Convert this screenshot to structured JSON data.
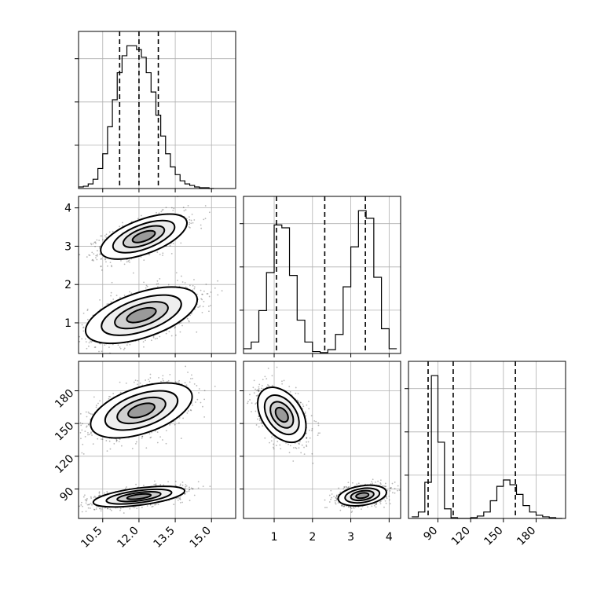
{
  "chart_data": {
    "type": "corner",
    "grid": true,
    "parameters": [
      {
        "range": [
          9.5,
          16.0
        ],
        "ticks": [
          10.5,
          12.0,
          13.5,
          15.0
        ],
        "tick_labels": [
          "10.5",
          "12.0",
          "13.5",
          "15.0"
        ],
        "quantiles": [
          11.2,
          12.0,
          12.8
        ]
      },
      {
        "range": [
          0.2,
          4.3
        ],
        "ticks": [
          1,
          2,
          3,
          4
        ],
        "tick_labels": [
          "1",
          "2",
          "3",
          "4"
        ],
        "quantiles": [
          1.06,
          2.32,
          3.38
        ]
      },
      {
        "range": [
          63,
          207
        ],
        "ticks": [
          90,
          120,
          150,
          180
        ],
        "tick_labels": [
          "90",
          "120",
          "150",
          "180"
        ],
        "quantiles": [
          81,
          104,
          161
        ]
      }
    ],
    "histograms": [
      {
        "bin_centers": [
          9.6,
          9.8,
          10.0,
          10.2,
          10.4,
          10.6,
          10.8,
          11.0,
          11.2,
          11.4,
          11.6,
          11.8,
          12.0,
          12.2,
          12.4,
          12.6,
          12.8,
          13.0,
          13.2,
          13.4,
          13.6,
          13.8,
          14.0,
          14.2,
          14.4,
          14.6,
          14.8,
          15.0
        ],
        "counts": [
          2,
          3,
          6,
          12,
          26,
          45,
          80,
          115,
          150,
          172,
          185,
          185,
          180,
          170,
          150,
          125,
          95,
          68,
          45,
          28,
          18,
          10,
          6,
          4,
          2,
          1,
          1,
          0
        ]
      },
      {
        "bin_centers": [
          0.3,
          0.5,
          0.7,
          0.9,
          1.1,
          1.3,
          1.5,
          1.7,
          1.9,
          2.1,
          2.3,
          2.5,
          2.7,
          2.9,
          3.1,
          3.3,
          3.5,
          3.7,
          3.9,
          4.1
        ],
        "counts": [
          5,
          12,
          45,
          85,
          135,
          132,
          82,
          35,
          12,
          2,
          1,
          4,
          20,
          70,
          112,
          150,
          142,
          80,
          26,
          5
        ]
      },
      {
        "bin_centers": [
          69,
          75,
          81,
          87,
          93,
          99,
          105,
          111,
          117,
          123,
          129,
          135,
          141,
          147,
          153,
          159,
          165,
          171,
          177,
          183,
          189,
          195,
          201
        ],
        "counts": [
          2,
          8,
          45,
          178,
          95,
          12,
          1,
          0,
          0,
          1,
          3,
          8,
          22,
          40,
          48,
          42,
          30,
          16,
          8,
          4,
          2,
          1,
          0
        ]
      }
    ],
    "pairs": [
      {
        "x_param": 0,
        "y_param": 1,
        "modes": [
          {
            "mean": [
              12.2,
              3.25
            ],
            "sd": [
              0.85,
              0.28
            ],
            "rho": 0.6,
            "weight": 0.5
          },
          {
            "mean": [
              12.1,
              1.2
            ],
            "sd": [
              1.1,
              0.35
            ],
            "rho": 0.55,
            "weight": 0.5
          }
        ]
      },
      {
        "x_param": 0,
        "y_param": 2,
        "modes": [
          {
            "mean": [
              12.1,
              162
            ],
            "sd": [
              1.0,
              12
            ],
            "rho": 0.5,
            "weight": 0.5
          },
          {
            "mean": [
              12.0,
              83
            ],
            "sd": [
              0.9,
              4.5
            ],
            "rho": 0.55,
            "weight": 0.5
          }
        ]
      },
      {
        "x_param": 1,
        "y_param": 2,
        "modes": [
          {
            "mean": [
              1.2,
              158
            ],
            "sd": [
              0.3,
              12
            ],
            "rho": -0.4,
            "weight": 0.5
          },
          {
            "mean": [
              3.3,
              84
            ],
            "sd": [
              0.3,
              4.5
            ],
            "rho": 0.3,
            "weight": 0.5
          }
        ]
      }
    ]
  }
}
